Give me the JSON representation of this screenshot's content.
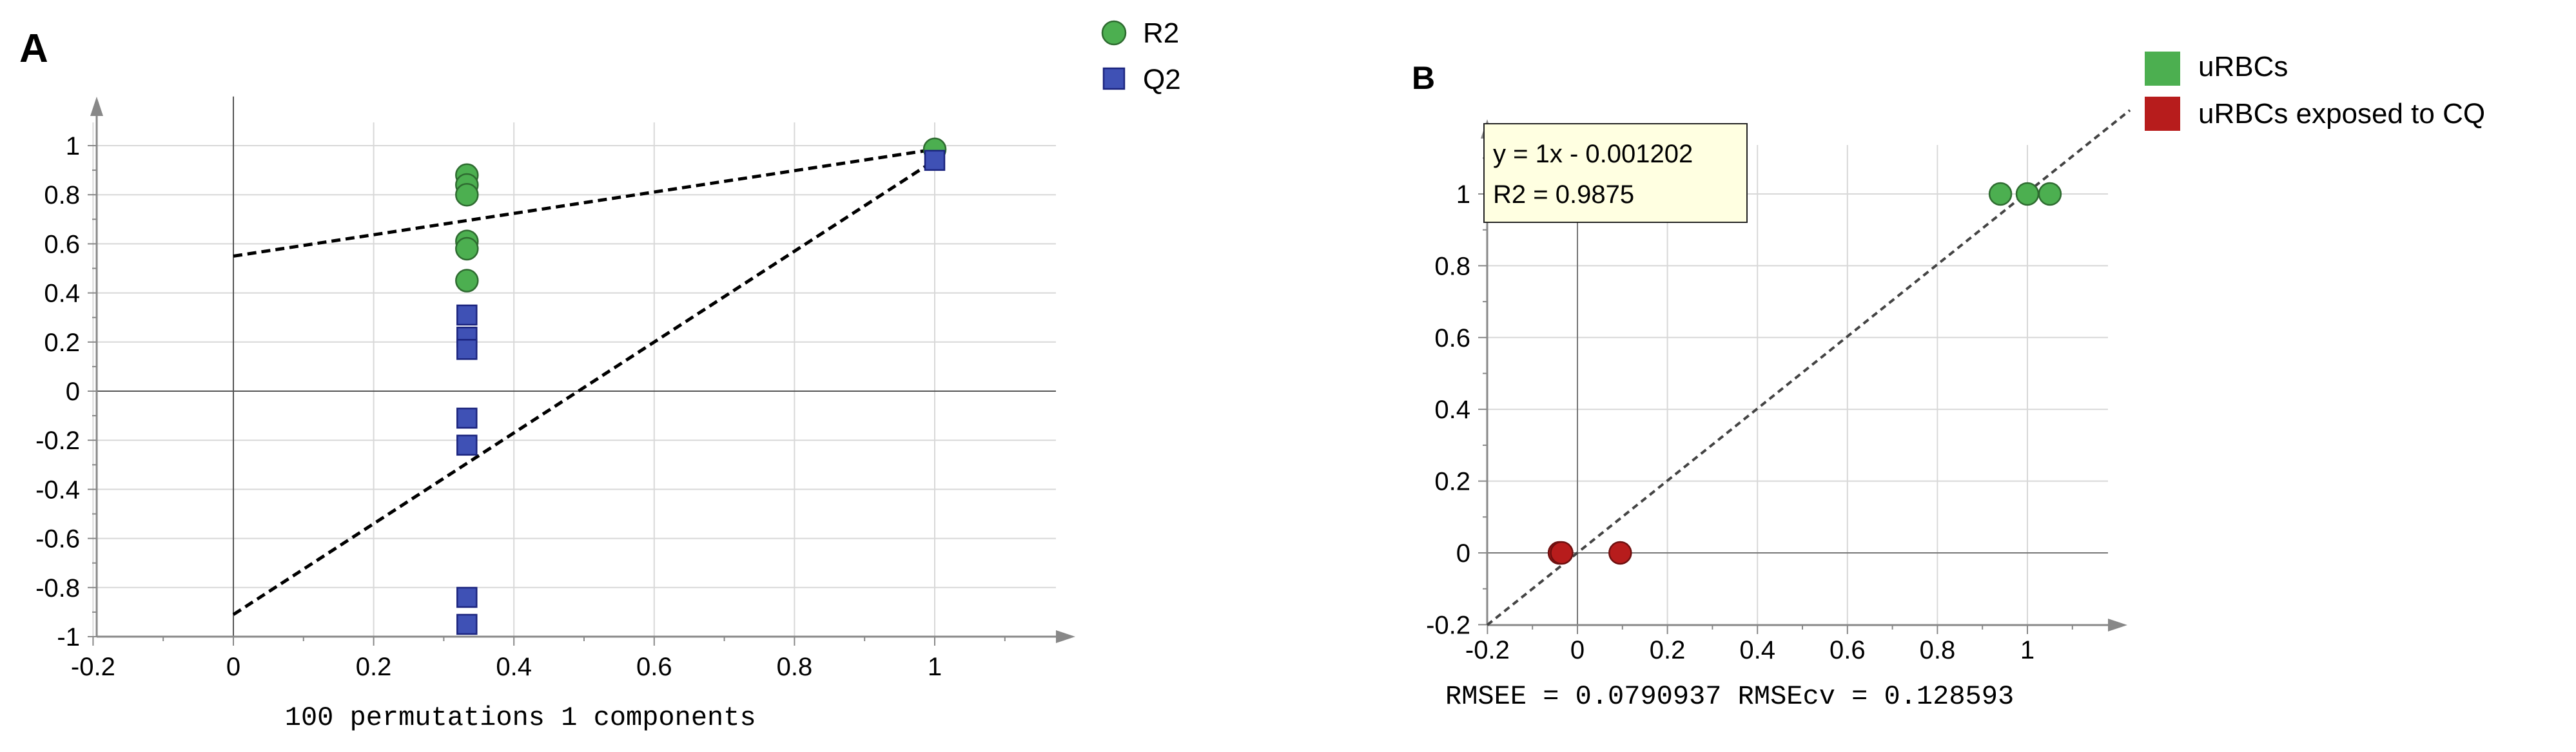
{
  "chart_data": [
    {
      "panel": "A",
      "type": "scatter",
      "title": "",
      "xlabel": "100 permutations 1 components",
      "ylabel": "",
      "xlim": [
        -0.2,
        1.2
      ],
      "ylim": [
        -1,
        1.2
      ],
      "xticks": [
        "-0.2",
        "0",
        "0.2",
        "0.4",
        "0.6",
        "0.8",
        "1"
      ],
      "yticks": [
        "-1",
        "-0.8",
        "-0.6",
        "-0.4",
        "-0.2",
        "0",
        "0.2",
        "0.4",
        "0.6",
        "0.8",
        "1"
      ],
      "grid": true,
      "legend": [
        "R2",
        "Q2"
      ],
      "series": [
        {
          "name": "R2",
          "marker": "circle",
          "color": "#4caf50",
          "points": [
            [
              0.333,
              0.88
            ],
            [
              0.333,
              0.84
            ],
            [
              0.333,
              0.8
            ],
            [
              0.333,
              0.61
            ],
            [
              0.333,
              0.58
            ],
            [
              0.333,
              0.45
            ],
            [
              1.0,
              0.985
            ]
          ]
        },
        {
          "name": "Q2",
          "marker": "square",
          "color": "#3f51b5",
          "points": [
            [
              0.333,
              0.31
            ],
            [
              0.333,
              0.22
            ],
            [
              0.333,
              0.17
            ],
            [
              0.333,
              -0.11
            ],
            [
              0.333,
              -0.22
            ],
            [
              0.333,
              -0.84
            ],
            [
              0.333,
              -0.95
            ],
            [
              1.0,
              0.94
            ]
          ]
        }
      ],
      "regression_lines": [
        {
          "name": "R2 intercept line",
          "from": [
            0,
            0.55
          ],
          "to": [
            1.0,
            0.985
          ]
        },
        {
          "name": "Q2 intercept line",
          "from": [
            0,
            -0.91
          ],
          "to": [
            1.0,
            0.94
          ]
        }
      ]
    },
    {
      "panel": "B",
      "type": "scatter",
      "title": "",
      "xlabel": "RMSEE = 0.0790937 RMSEcv = 0.128593",
      "ylabel": "",
      "xlim": [
        -0.2,
        1.2
      ],
      "ylim": [
        -0.2,
        1.2
      ],
      "xticks": [
        "-0.2",
        "0",
        "0.2",
        "0.4",
        "0.6",
        "0.8",
        "1"
      ],
      "yticks": [
        "-0.2",
        "0",
        "0.2",
        "0.4",
        "0.6",
        "0.8",
        "1"
      ],
      "grid": true,
      "legend": [
        "uRBCs",
        "uRBCs exposed to CQ"
      ],
      "series": [
        {
          "name": "uRBCs",
          "marker": "circle",
          "color": "#4caf50",
          "points": [
            [
              0.94,
              1.0
            ],
            [
              1.0,
              1.0
            ],
            [
              1.05,
              1.0
            ]
          ]
        },
        {
          "name": "uRBCs exposed to CQ",
          "marker": "circle",
          "color": "#b71c1c",
          "points": [
            [
              -0.04,
              0.0
            ],
            [
              -0.035,
              0.0
            ],
            [
              0.095,
              0.0
            ]
          ]
        }
      ],
      "regression_lines": [
        {
          "name": "fit line",
          "from": [
            -0.2,
            -0.2
          ],
          "to": [
            1.2,
            1.2
          ]
        }
      ],
      "annotation_lines": [
        "y = 1x - 0.001202",
        "R2 = 0.9875"
      ]
    }
  ],
  "labels": {
    "panel_a": "A",
    "panel_b": "B"
  },
  "colors": {
    "green": "#4caf50",
    "blue": "#3f51b5",
    "red": "#b71c1c",
    "grid": "#d8d8d8",
    "axis": "#888888"
  }
}
